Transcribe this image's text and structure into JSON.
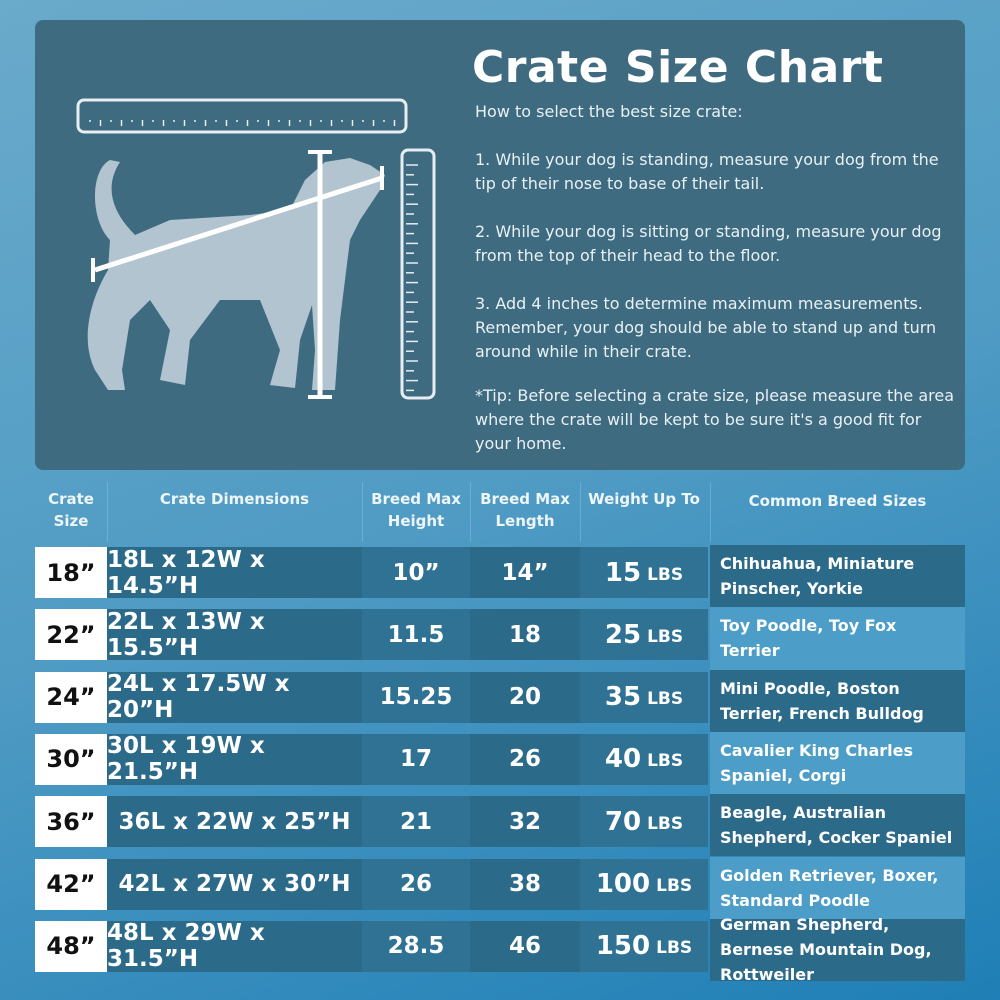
{
  "title": "Crate Size Chart",
  "intro": "How to select the best size crate:",
  "steps": [
    "1. While your dog is standing, measure your dog from the tip of their nose to base of their tail.",
    "2. While your dog is sitting or standing, measure your dog from the top of their head to the floor.",
    "3. Add 4 inches to determine maximum measurements. Remember, your dog should be able to stand up and turn around while in their crate."
  ],
  "tip": "*Tip: Before selecting a crate size, please measure the area where the crate will be kept to be sure it's a good fit for your home.",
  "headers": [
    "Crate Size",
    "Crate Dimensions",
    "Breed Max Height",
    "Breed Max Length",
    "Weight Up To",
    "Common Breed Sizes"
  ],
  "unit": "LBS",
  "rows": [
    {
      "size": "18”",
      "dims": "18L x 12W x 14.5”H",
      "height": "10”",
      "length": "14”",
      "weight": "15",
      "breeds": "Chihuahua, Miniature Pinscher, Yorkie"
    },
    {
      "size": "22”",
      "dims": "22L x 13W x 15.5”H",
      "height": "11.5",
      "length": "18",
      "weight": "25",
      "breeds": "Toy Poodle, Toy Fox Terrier"
    },
    {
      "size": "24”",
      "dims": "24L x 17.5W x 20”H",
      "height": "15.25",
      "length": "20",
      "weight": "35",
      "breeds": "Mini Poodle, Boston Terrier, French Bulldog"
    },
    {
      "size": "30”",
      "dims": "30L x 19W x 21.5”H",
      "height": "17",
      "length": "26",
      "weight": "40",
      "breeds": "Cavalier King Charles Spaniel, Corgi"
    },
    {
      "size": "36”",
      "dims": "36L x 22W x 25”H",
      "height": "21",
      "length": "32",
      "weight": "70",
      "breeds": "Beagle, Australian Shepherd, Cocker Spaniel"
    },
    {
      "size": "42”",
      "dims": "42L x 27W x 30”H",
      "height": "26",
      "length": "38",
      "weight": "100",
      "breeds": "Golden Retriever, Boxer, Standard Poodle"
    },
    {
      "size": "48”",
      "dims": "48L x 29W x 31.5”H",
      "height": "28.5",
      "length": "46",
      "weight": "150",
      "breeds": "German Shepherd, Bernese Mountain Dog, Rottweiler"
    }
  ],
  "colors": {
    "panel": "#3f6b80",
    "row_dark": "#2c6a8a",
    "row_light": "#4c9dc7",
    "size_cell": "#ffffff"
  }
}
